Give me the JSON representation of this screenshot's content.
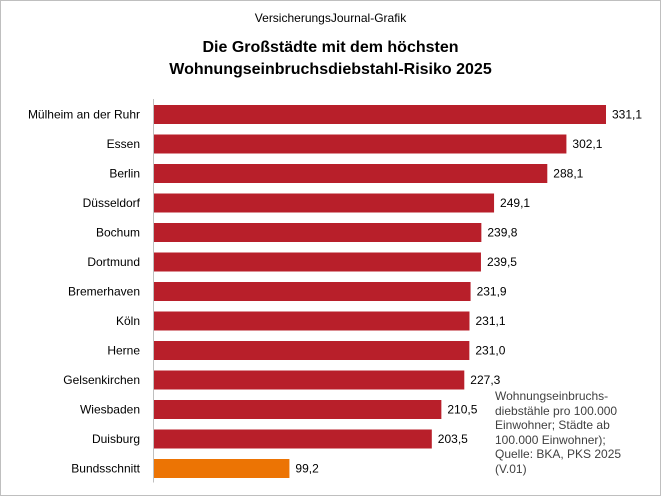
{
  "header": {
    "brand": "VersicherungsJournal-Grafik",
    "title_line1": "Die Großstädte mit dem höchsten",
    "title_line2": "Wohnungseinbruchsdiebstahl-Risiko 2025"
  },
  "note": "Wohnungseinbruchs-\ndiebstähle pro 100.000\nEinwohner; Städte ab\n100.000 Einwohner);\nQuelle: BKA, PKS 2025\n(V.01)",
  "colors": {
    "bar": "#b81f2a",
    "highlight": "#ec7404",
    "text": "#000000",
    "note_text": "#404040"
  },
  "chart_data": {
    "type": "bar",
    "orientation": "horizontal",
    "title": "Die Großstädte mit dem höchsten Wohnungseinbruchsdiebstahl-Risiko 2025",
    "categories": [
      "Mülheim an der Ruhr",
      "Essen",
      "Berlin",
      "Düsseldorf",
      "Bochum",
      "Dortmund",
      "Bremerhaven",
      "Köln",
      "Herne",
      "Gelsenkirchen",
      "Wiesbaden",
      "Duisburg",
      "Bundsschnitt"
    ],
    "values": [
      331.1,
      302.1,
      288.1,
      249.1,
      239.8,
      239.5,
      231.9,
      231.1,
      231.0,
      227.3,
      210.5,
      203.5,
      99.2
    ],
    "value_labels": [
      "331,1",
      "302,1",
      "288,1",
      "249,1",
      "239,8",
      "239,5",
      "231,9",
      "231,1",
      "231,0",
      "227,3",
      "210,5",
      "203,5",
      "99,2"
    ],
    "highlight_category": "Bundsschnitt",
    "xlim": [
      0,
      331.1
    ],
    "grid": false,
    "legend": "none",
    "xlabel": "",
    "ylabel": ""
  }
}
